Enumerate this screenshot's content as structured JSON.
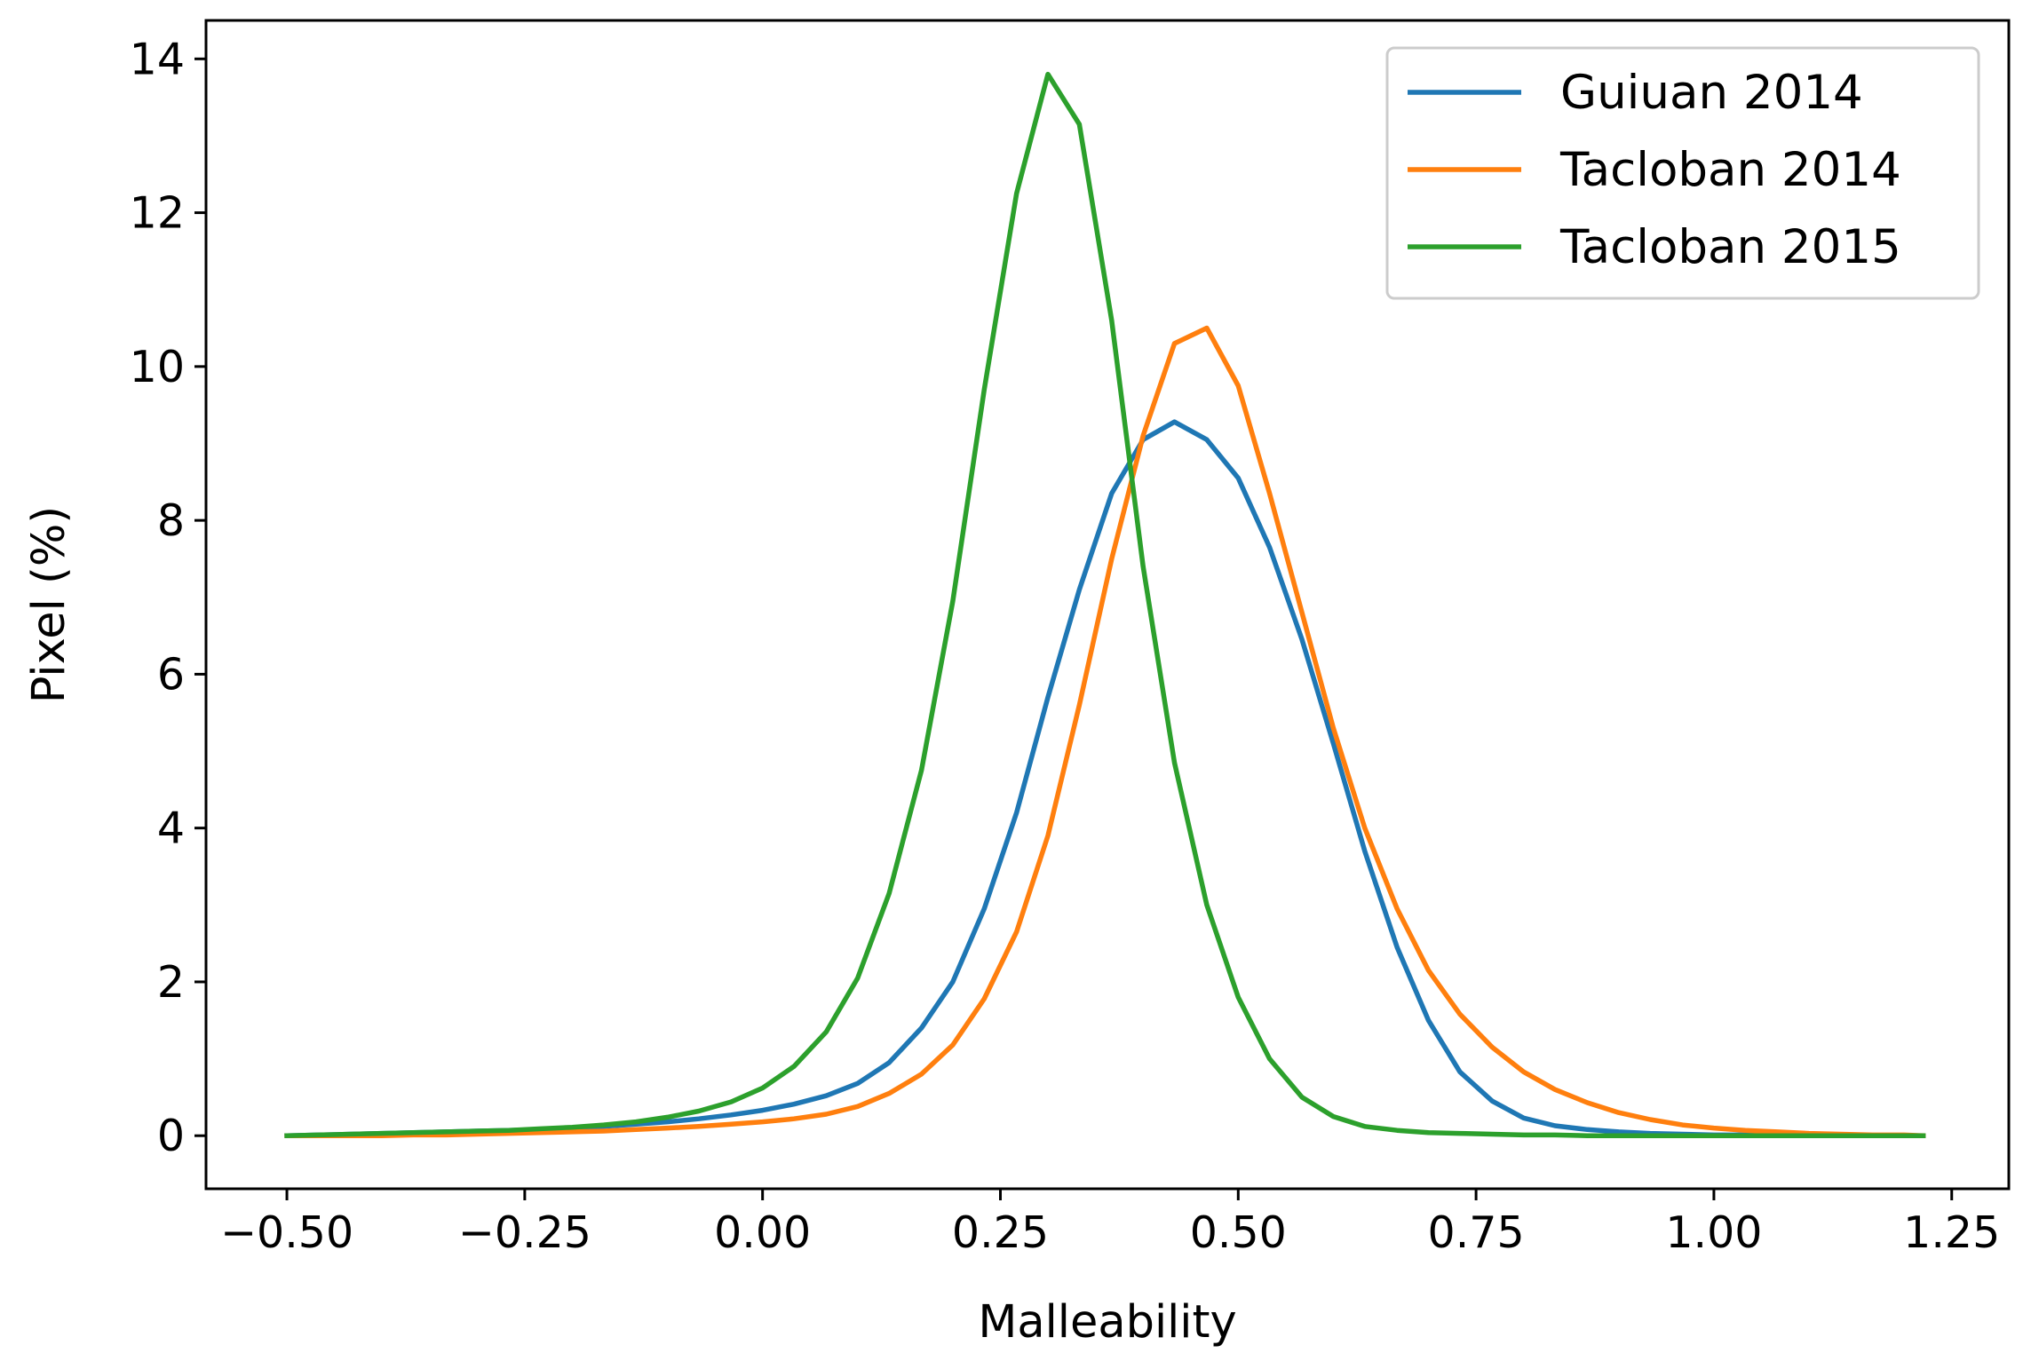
{
  "chart_data": {
    "type": "line",
    "title": "",
    "xlabel": "Malleability",
    "ylabel": "Pixel (%)",
    "xlim": [
      -0.585,
      1.31
    ],
    "ylim": [
      -0.69,
      14.5
    ],
    "x_ticks": [
      -0.5,
      -0.25,
      0.0,
      0.25,
      0.5,
      0.75,
      1.0,
      1.25
    ],
    "x_tick_labels": [
      "−0.50",
      "−0.25",
      "0.00",
      "0.25",
      "0.50",
      "0.75",
      "1.00",
      "1.25"
    ],
    "y_ticks": [
      0,
      2,
      4,
      6,
      8,
      10,
      12,
      14
    ],
    "y_tick_labels": [
      "0",
      "2",
      "4",
      "6",
      "8",
      "10",
      "12",
      "14"
    ],
    "grid": false,
    "legend_position": "top-right",
    "x": [
      -0.5,
      -0.467,
      -0.433,
      -0.4,
      -0.367,
      -0.333,
      -0.3,
      -0.267,
      -0.233,
      -0.2,
      -0.167,
      -0.133,
      -0.1,
      -0.067,
      -0.033,
      0.0,
      0.033,
      0.067,
      0.1,
      0.133,
      0.167,
      0.2,
      0.233,
      0.267,
      0.3,
      0.333,
      0.367,
      0.4,
      0.433,
      0.467,
      0.5,
      0.533,
      0.567,
      0.6,
      0.633,
      0.667,
      0.7,
      0.733,
      0.767,
      0.8,
      0.833,
      0.867,
      0.9,
      0.933,
      0.967,
      1.0,
      1.033,
      1.067,
      1.1,
      1.133,
      1.167,
      1.2,
      1.22
    ],
    "series": [
      {
        "name": "Guiuan 2014",
        "color": "#1f77b4",
        "values": [
          0.0,
          0.01,
          0.02,
          0.03,
          0.04,
          0.05,
          0.06,
          0.07,
          0.08,
          0.1,
          0.12,
          0.15,
          0.18,
          0.22,
          0.27,
          0.33,
          0.41,
          0.52,
          0.68,
          0.95,
          1.4,
          2.0,
          2.95,
          4.2,
          5.7,
          7.1,
          8.35,
          9.05,
          9.28,
          9.05,
          8.55,
          7.65,
          6.45,
          5.1,
          3.7,
          2.45,
          1.5,
          0.83,
          0.45,
          0.23,
          0.13,
          0.08,
          0.05,
          0.03,
          0.02,
          0.01,
          0.01,
          0.0,
          0.0,
          0.0,
          0.0,
          0.0,
          0.0
        ]
      },
      {
        "name": "Tacloban 2014",
        "color": "#ff7f0e",
        "values": [
          0.0,
          0.0,
          0.0,
          0.0,
          0.01,
          0.01,
          0.02,
          0.03,
          0.04,
          0.05,
          0.06,
          0.08,
          0.1,
          0.12,
          0.15,
          0.18,
          0.22,
          0.28,
          0.38,
          0.55,
          0.8,
          1.18,
          1.78,
          2.65,
          3.9,
          5.6,
          7.5,
          9.1,
          10.3,
          10.5,
          9.75,
          8.35,
          6.8,
          5.3,
          4.0,
          2.95,
          2.15,
          1.58,
          1.15,
          0.83,
          0.6,
          0.43,
          0.3,
          0.21,
          0.14,
          0.1,
          0.07,
          0.05,
          0.03,
          0.02,
          0.01,
          0.01,
          0.0
        ]
      },
      {
        "name": "Tacloban 2015",
        "color": "#2ca02c",
        "values": [
          0.0,
          0.01,
          0.02,
          0.03,
          0.04,
          0.05,
          0.06,
          0.07,
          0.09,
          0.11,
          0.14,
          0.18,
          0.24,
          0.32,
          0.44,
          0.62,
          0.9,
          1.35,
          2.05,
          3.15,
          4.75,
          6.95,
          9.7,
          12.25,
          13.8,
          13.15,
          10.6,
          7.4,
          4.85,
          3.0,
          1.8,
          1.0,
          0.5,
          0.25,
          0.12,
          0.07,
          0.04,
          0.03,
          0.02,
          0.01,
          0.01,
          0.0,
          0.0,
          0.0,
          0.0,
          0.0,
          0.0,
          0.0,
          0.0,
          0.0,
          0.0,
          0.0,
          0.0
        ]
      }
    ]
  }
}
